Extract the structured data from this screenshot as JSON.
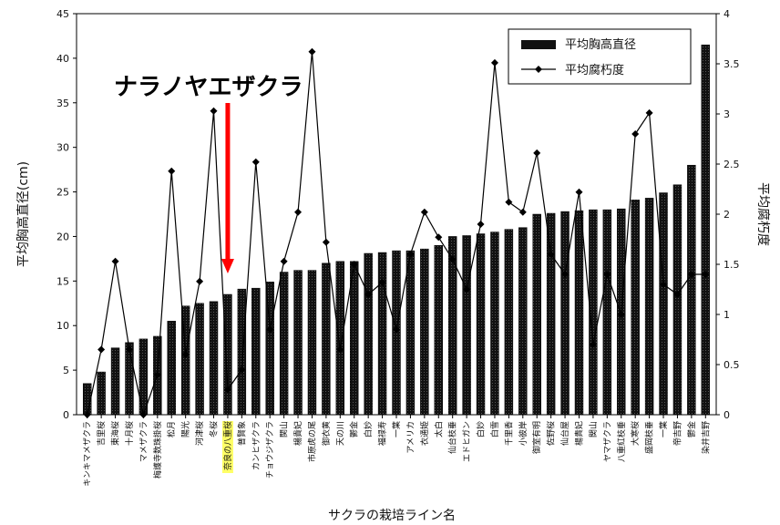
{
  "chart_data": {
    "type": "bar",
    "xlabel": "サクラの栽培ライン名",
    "ylabel_left": "平均胸高直径(cm)",
    "ylabel_right": "平均腐朽度",
    "ylim_left": [
      0,
      45
    ],
    "ylim_right": [
      0,
      4
    ],
    "yticks_left": [
      0,
      5,
      10,
      15,
      20,
      25,
      30,
      35,
      40,
      45
    ],
    "yticks_right": [
      "0",
      "0.5",
      "1",
      "1.5",
      "2",
      "2.5",
      "3",
      "3.5",
      "4"
    ],
    "legend": {
      "placement": "top-right",
      "bar_label": "平均胸高直径",
      "line_label": "平均腐朽度"
    },
    "annotation": {
      "text": "ナラノヤエザクラ",
      "target": "奈良の八重桜",
      "arrow_color": "#ff0000"
    },
    "highlight_category": "奈良の八重桜",
    "highlight_color": "#ffff66",
    "categories": [
      "キンキマメザクラ",
      "吉里桜",
      "東海桜",
      "十月桜",
      "マメザクラ",
      "梅護寺数珠掛桜",
      "松月",
      "陽光",
      "河津桜",
      "冬桜",
      "奈良の八重桜",
      "普賢象",
      "カンヒザクラ",
      "チョウジザクラ",
      "関山",
      "楊貴妃",
      "市原虎の尾",
      "御衣黄",
      "天の川",
      "鬱金",
      "白妙",
      "福禄寿",
      "一葉",
      "アメリカ",
      "衣通姫",
      "太白",
      "仙台枝垂",
      "エドヒガン",
      "白妙",
      "白雪",
      "千里香",
      "小彼岸",
      "御室有明",
      "佐野桜",
      "仙台屋",
      "楊貴妃",
      "関山",
      "ヤマザクラ",
      "八重紅枝垂",
      "大寒桜",
      "盛岡枝垂",
      "一葉",
      "帝吉野",
      "鬱金",
      "染井吉野"
    ],
    "series": [
      {
        "name": "平均胸高直径",
        "axis": "left",
        "values": [
          3.5,
          4.8,
          7.5,
          8.1,
          8.5,
          8.8,
          10.5,
          12.2,
          12.5,
          12.7,
          13.5,
          14.1,
          14.2,
          14.9,
          16.0,
          16.2,
          16.2,
          17.0,
          17.2,
          17.2,
          18.1,
          18.2,
          18.4,
          18.4,
          18.6,
          19.0,
          20.0,
          20.1,
          20.3,
          20.5,
          20.8,
          21.0,
          22.5,
          22.6,
          22.8,
          22.9,
          23.0,
          23.0,
          23.1,
          24.1,
          24.3,
          24.9,
          25.8,
          28.0,
          41.5
        ]
      },
      {
        "name": "平均腐朽度",
        "axis": "right",
        "values": [
          0.0,
          0.65,
          1.53,
          0.65,
          0.0,
          0.4,
          2.43,
          0.6,
          1.33,
          3.03,
          0.25,
          0.45,
          2.52,
          0.85,
          1.53,
          2.02,
          3.62,
          1.72,
          0.65,
          1.5,
          1.2,
          1.32,
          0.85,
          1.6,
          2.02,
          1.77,
          1.55,
          1.25,
          1.9,
          3.51,
          2.12,
          2.02,
          2.61,
          1.6,
          1.4,
          2.22,
          0.7,
          1.4,
          1.0,
          2.8,
          3.01,
          1.3,
          1.2,
          1.4,
          1.4
        ]
      }
    ]
  }
}
